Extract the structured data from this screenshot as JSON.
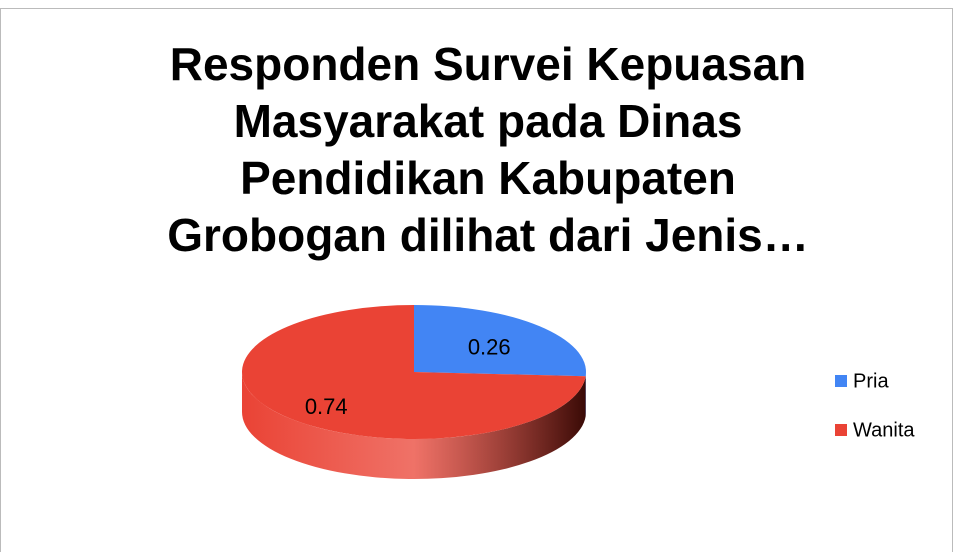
{
  "chart_data": {
    "type": "pie",
    "title": "Responden Survei Kepuasan Masyarakat pada Dinas Pendidikan Kabupaten Grobogan dilihat dari Jenis…",
    "categories": [
      "Pria",
      "Wanita"
    ],
    "values": [
      0.26,
      0.74
    ],
    "colors": [
      "#4285f4",
      "#ea4335"
    ],
    "legend": "right",
    "style": "3d"
  }
}
